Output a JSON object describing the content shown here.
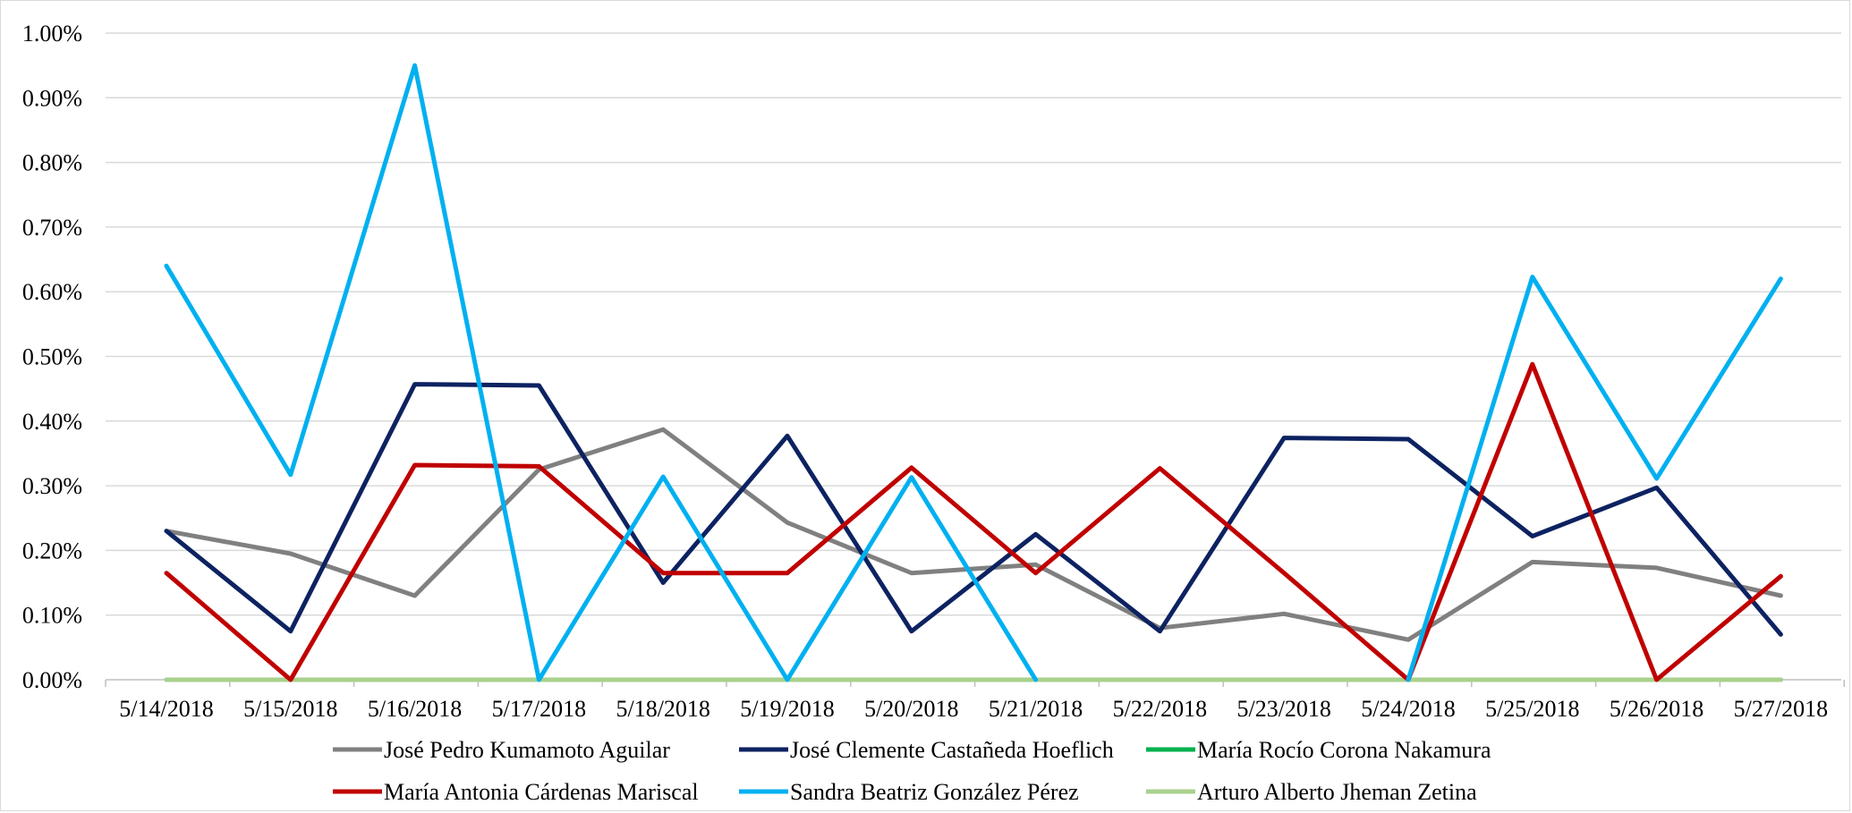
{
  "chart_data": {
    "type": "line",
    "title": "",
    "xlabel": "",
    "ylabel": "",
    "x": [
      "5/14/2018",
      "5/15/2018",
      "5/16/2018",
      "5/17/2018",
      "5/18/2018",
      "5/19/2018",
      "5/20/2018",
      "5/21/2018",
      "5/22/2018",
      "5/23/2018",
      "5/24/2018",
      "5/25/2018",
      "5/26/2018",
      "5/27/2018"
    ],
    "ylim": [
      0,
      0.01
    ],
    "y_ticks": [
      "0.00%",
      "0.10%",
      "0.20%",
      "0.30%",
      "0.40%",
      "0.50%",
      "0.60%",
      "0.70%",
      "0.80%",
      "0.90%",
      "1.00%"
    ],
    "y_tick_values": [
      0,
      0.001,
      0.002,
      0.003,
      0.004,
      0.005,
      0.006,
      0.007,
      0.008,
      0.009,
      0.01
    ],
    "grid": true,
    "legend_position": "bottom",
    "series": [
      {
        "name": "José Pedro Kumamoto Aguilar",
        "color": "#808080",
        "values": [
          0.0023,
          0.00195,
          0.0013,
          0.00325,
          0.00387,
          0.00243,
          0.00165,
          0.00178,
          0.0008,
          0.00102,
          0.00062,
          0.00182,
          0.00173,
          0.0013
        ]
      },
      {
        "name": "José Clemente Castañeda Hoeflich",
        "color": "#0d2261",
        "values": [
          0.0023,
          0.00075,
          0.00457,
          0.00455,
          0.0015,
          0.00377,
          0.00075,
          0.00225,
          0.00075,
          0.00374,
          0.00372,
          0.00222,
          0.00297,
          0.0007
        ]
      },
      {
        "name": "María Rocío Corona Nakamura",
        "color": "#00b050",
        "values": [
          0,
          0,
          0,
          0,
          0,
          0,
          0,
          0,
          0,
          0,
          0,
          0,
          0,
          0
        ]
      },
      {
        "name": "María Antonia Cárdenas Mariscal",
        "color": "#c00000",
        "values": [
          0.00165,
          0,
          0.00332,
          0.0033,
          0.00165,
          0.00165,
          0.00328,
          0.00165,
          0.00327,
          0.00165,
          0,
          0.00488,
          0,
          0.0016
        ]
      },
      {
        "name": "Sandra Beatriz González Pérez",
        "color": "#00b0f0",
        "values": [
          0.0064,
          0.00317,
          0.0095,
          0,
          0.00314,
          0,
          0.00313,
          0,
          null,
          null,
          0,
          0.00623,
          0.00311,
          0.0062
        ]
      },
      {
        "name": "Arturo Alberto Jheman Zetina",
        "color": "#a9d18e",
        "values": [
          0,
          0,
          0,
          0,
          0,
          0,
          0,
          0,
          0,
          0,
          0,
          0,
          0,
          0
        ]
      }
    ]
  }
}
